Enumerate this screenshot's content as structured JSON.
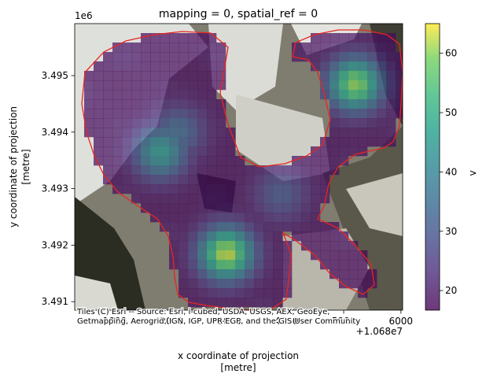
{
  "chart_data": {
    "type": "heatmap",
    "title": "mapping = 0, spatial_ref = 0",
    "xlabel_line1": "x coordinate of projection",
    "xlabel_line2": "[metre]",
    "ylabel_line1": "y coordinate of projection",
    "ylabel_line2": "[metre]",
    "x_tick_labels": [
      "1000",
      "2000",
      "3000",
      "4000",
      "5000",
      "6000"
    ],
    "x_offset_text": "+1.068e7",
    "y_tick_labels": [
      "3.491",
      "3.492",
      "3.493",
      "3.494",
      "3.495"
    ],
    "y_offset_text": "1e6",
    "xlim": [
      300,
      6030
    ],
    "ylim": [
      3490850,
      3495920
    ],
    "x_ticks": [
      1000,
      2000,
      3000,
      4000,
      5000,
      6000
    ],
    "y_ticks": [
      3491000,
      3492000,
      3493000,
      3494000,
      3495000
    ],
    "colorbar": {
      "label": "v",
      "range": [
        16.7,
        65
      ],
      "ticks": [
        20,
        30,
        40,
        50,
        60
      ],
      "tick_labels": [
        "20",
        "30",
        "40",
        "50",
        "60"
      ],
      "colormap": "viridis",
      "alpha": 0.7
    },
    "hotspots": [
      {
        "x": 2950,
        "y": 3491850,
        "peak_v": 63
      },
      {
        "x": 1800,
        "y": 3493650,
        "peak_v": 45
      },
      {
        "x": 5200,
        "y": 3494850,
        "peak_v": 60
      },
      {
        "x": 2100,
        "y": 3494000,
        "peak_v": 34
      },
      {
        "x": 3900,
        "y": 3492900,
        "peak_v": 30
      }
    ],
    "outline_color": "#e8261e",
    "attribution": "Tiles (C) Esri -- Source: Esri, i-cubed, USDA, USGS, AEX, GeoEye, Getmapping, Aerogrid, IGN, IGP, UPR-EGP, and the GIS User Community"
  }
}
